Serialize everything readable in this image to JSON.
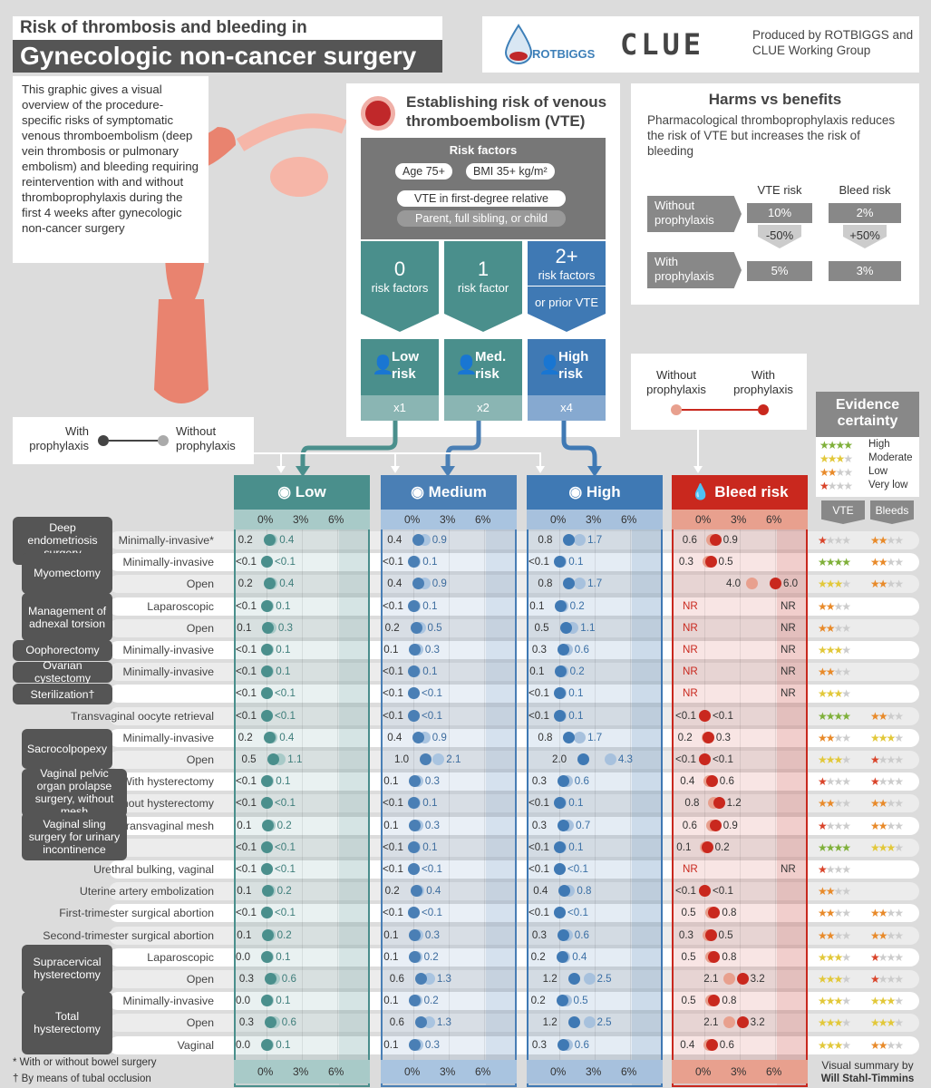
{
  "title": {
    "line1": "Risk of thrombosis and bleeding in",
    "line2": "Gynecologic non-cancer surgery"
  },
  "intro": "This graphic gives a visual overview of the procedure-specific risks of symptomatic venous thromboembolism (deep vein thrombosis or pulmonary embolism) and bleeding requiring reintervention with and without thromboprophylaxis during the first 4 weeks after gynecologic non-cancer surgery",
  "logos": {
    "rotbiggs": "ROTBIGGS",
    "clue": "CLUE",
    "produced_by": "Produced by ROTBIGGS and CLUE Working Group"
  },
  "vte": {
    "title": "Establishing risk of venous thromboembolism (VTE)",
    "risk_factors_title": "Risk factors",
    "factors": [
      "Age 75+",
      "BMI 35+ kg/m²",
      "VTE in first-degree relative",
      "Parent, full sibling, or child"
    ],
    "levels": [
      {
        "count": "0",
        "label": "risk factors",
        "risk": "Low risk",
        "mult": "x1"
      },
      {
        "count": "1",
        "label": "risk factor",
        "risk": "Med. risk",
        "mult": "x2"
      },
      {
        "count": "2+",
        "label": "risk factors",
        "extra": "or prior VTE",
        "risk": "High risk",
        "mult": "x4"
      }
    ]
  },
  "harms": {
    "title": "Harms vs benefits",
    "text": "Pharmacological thromboprophylaxis reduces the risk of VTE but increases the risk of bleeding",
    "col_vte": "VTE risk",
    "col_bleed": "Bleed risk",
    "without": "Without prophylaxis",
    "with": "With prophylaxis",
    "vte_without": "10%",
    "vte_change": "-50%",
    "vte_with": "5%",
    "bleed_without": "2%",
    "bleed_change": "+50%",
    "bleed_with": "3%"
  },
  "legend_vte": {
    "with": "With prophylaxis",
    "without": "Without prophylaxis"
  },
  "legend_bleed": {
    "without": "Without prophylaxis",
    "with": "With prophylaxis"
  },
  "evidence": {
    "title": "Evidence certainty",
    "levels": [
      "High",
      "Moderate",
      "Low",
      "Very low"
    ],
    "col_vte": "VTE",
    "col_bleeds": "Bleeds"
  },
  "columns": {
    "low": "Low",
    "medium": "Medium",
    "high": "High",
    "bleed": "Bleed risk",
    "ticks": [
      "0%",
      "3%",
      "6%"
    ]
  },
  "groups": [
    {
      "label": "Deep endometriosis surgery",
      "rows": [
        0
      ]
    },
    {
      "label": "Myomectomy",
      "rows": [
        1,
        2
      ]
    },
    {
      "label": "Management of adnexal torsion",
      "rows": [
        3,
        4
      ]
    },
    {
      "label": "Oophorectomy",
      "rows": [
        5
      ]
    },
    {
      "label": "Ovarian cystectomy",
      "rows": [
        6
      ]
    },
    {
      "label": "Sterilization†",
      "rows": [
        7
      ]
    },
    {
      "label": "Sacrocolpopexy",
      "rows": [
        9,
        10
      ]
    },
    {
      "label": "Vaginal pelvic organ prolapse surgery, without mesh",
      "rows": [
        11,
        12
      ]
    },
    {
      "label": "Vaginal sling surgery for urinary incontinence",
      "rows": [
        13,
        14
      ]
    },
    {
      "label": "Supracervical hysterectomy",
      "rows": [
        19,
        20
      ]
    },
    {
      "label": "Total hysterectomy",
      "rows": [
        21,
        22,
        23
      ]
    }
  ],
  "rows": [
    {
      "label": "Minimally-invasive*",
      "low": [
        "0.2",
        "0.4"
      ],
      "med": [
        "0.4",
        "0.9"
      ],
      "high": [
        "0.8",
        "1.7"
      ],
      "bleed": [
        "0.6",
        "0.9"
      ],
      "ev_vte": 1,
      "ev_bleed": 2
    },
    {
      "label": "Minimally-invasive",
      "low": [
        "<0.1",
        "<0.1"
      ],
      "med": [
        "<0.1",
        "0.1"
      ],
      "high": [
        "<0.1",
        "0.1"
      ],
      "bleed": [
        "0.3",
        "0.5"
      ],
      "ev_vte": 4,
      "ev_bleed": 2
    },
    {
      "label": "Open",
      "low": [
        "0.2",
        "0.4"
      ],
      "med": [
        "0.4",
        "0.9"
      ],
      "high": [
        "0.8",
        "1.7"
      ],
      "bleed": [
        "4.0",
        "6.0"
      ],
      "ev_vte": 3,
      "ev_bleed": 2
    },
    {
      "label": "Laparoscopic",
      "low": [
        "<0.1",
        "0.1"
      ],
      "med": [
        "<0.1",
        "0.1"
      ],
      "high": [
        "0.1",
        "0.2"
      ],
      "bleed": [
        "NR",
        "NR"
      ],
      "ev_vte": 2,
      "ev_bleed": 0
    },
    {
      "label": "Open",
      "low": [
        "0.1",
        "0.3"
      ],
      "med": [
        "0.2",
        "0.5"
      ],
      "high": [
        "0.5",
        "1.1"
      ],
      "bleed": [
        "NR",
        "NR"
      ],
      "ev_vte": 2,
      "ev_bleed": 0
    },
    {
      "label": "Minimally-invasive",
      "low": [
        "<0.1",
        "0.1"
      ],
      "med": [
        "0.1",
        "0.3"
      ],
      "high": [
        "0.3",
        "0.6"
      ],
      "bleed": [
        "NR",
        "NR"
      ],
      "ev_vte": 3,
      "ev_bleed": 0
    },
    {
      "label": "Minimally-invasive",
      "low": [
        "<0.1",
        "0.1"
      ],
      "med": [
        "<0.1",
        "0.1"
      ],
      "high": [
        "0.1",
        "0.2"
      ],
      "bleed": [
        "NR",
        "NR"
      ],
      "ev_vte": 2,
      "ev_bleed": 0
    },
    {
      "label": "",
      "low": [
        "<0.1",
        "<0.1"
      ],
      "med": [
        "<0.1",
        "<0.1"
      ],
      "high": [
        "<0.1",
        "0.1"
      ],
      "bleed": [
        "NR",
        "NR"
      ],
      "ev_vte": 3,
      "ev_bleed": 0
    },
    {
      "label": "Transvaginal oocyte retrieval",
      "low": [
        "<0.1",
        "<0.1"
      ],
      "med": [
        "<0.1",
        "<0.1"
      ],
      "high": [
        "<0.1",
        "0.1"
      ],
      "bleed": [
        "<0.1",
        "<0.1"
      ],
      "ev_vte": 4,
      "ev_bleed": 2
    },
    {
      "label": "Minimally-invasive",
      "low": [
        "0.2",
        "0.4"
      ],
      "med": [
        "0.4",
        "0.9"
      ],
      "high": [
        "0.8",
        "1.7"
      ],
      "bleed": [
        "0.2",
        "0.3"
      ],
      "ev_vte": 2,
      "ev_bleed": 3
    },
    {
      "label": "Open",
      "low": [
        "0.5",
        "1.1"
      ],
      "med": [
        "1.0",
        "2.1"
      ],
      "high": [
        "2.0",
        "4.3"
      ],
      "bleed": [
        "<0.1",
        "<0.1"
      ],
      "ev_vte": 3,
      "ev_bleed": 1
    },
    {
      "label": "With hysterectomy",
      "low": [
        "<0.1",
        "0.1"
      ],
      "med": [
        "0.1",
        "0.3"
      ],
      "high": [
        "0.3",
        "0.6"
      ],
      "bleed": [
        "0.4",
        "0.6"
      ],
      "ev_vte": 1,
      "ev_bleed": 1
    },
    {
      "label": "Without hysterectomy",
      "low": [
        "<0.1",
        "<0.1"
      ],
      "med": [
        "<0.1",
        "0.1"
      ],
      "high": [
        "<0.1",
        "0.1"
      ],
      "bleed": [
        "0.8",
        "1.2"
      ],
      "ev_vte": 2,
      "ev_bleed": 2
    },
    {
      "label": "Transvaginal mesh",
      "low": [
        "0.1",
        "0.2"
      ],
      "med": [
        "0.1",
        "0.3"
      ],
      "high": [
        "0.3",
        "0.7"
      ],
      "bleed": [
        "0.6",
        "0.9"
      ],
      "ev_vte": 1,
      "ev_bleed": 2
    },
    {
      "label": "",
      "low": [
        "<0.1",
        "<0.1"
      ],
      "med": [
        "<0.1",
        "0.1"
      ],
      "high": [
        "<0.1",
        "0.1"
      ],
      "bleed": [
        "0.1",
        "0.2"
      ],
      "ev_vte": 4,
      "ev_bleed": 3
    },
    {
      "label": "Urethral bulking, vaginal",
      "low": [
        "<0.1",
        "<0.1"
      ],
      "med": [
        "<0.1",
        "<0.1"
      ],
      "high": [
        "<0.1",
        "<0.1"
      ],
      "bleed": [
        "NR",
        "NR"
      ],
      "ev_vte": 1,
      "ev_bleed": 0
    },
    {
      "label": "Uterine artery embolization",
      "low": [
        "0.1",
        "0.2"
      ],
      "med": [
        "0.2",
        "0.4"
      ],
      "high": [
        "0.4",
        "0.8"
      ],
      "bleed": [
        "<0.1",
        "<0.1"
      ],
      "ev_vte": 2,
      "ev_bleed": 0
    },
    {
      "label": "First-trimester surgical abortion",
      "low": [
        "<0.1",
        "<0.1"
      ],
      "med": [
        "<0.1",
        "<0.1"
      ],
      "high": [
        "<0.1",
        "<0.1"
      ],
      "bleed": [
        "0.5",
        "0.8"
      ],
      "ev_vte": 2,
      "ev_bleed": 2
    },
    {
      "label": "Second-trimester surgical abortion",
      "low": [
        "0.1",
        "0.2"
      ],
      "med": [
        "0.1",
        "0.3"
      ],
      "high": [
        "0.3",
        "0.6"
      ],
      "bleed": [
        "0.3",
        "0.5"
      ],
      "ev_vte": 2,
      "ev_bleed": 2
    },
    {
      "label": "Laparoscopic",
      "low": [
        "0.0",
        "0.1"
      ],
      "med": [
        "0.1",
        "0.2"
      ],
      "high": [
        "0.2",
        "0.4"
      ],
      "bleed": [
        "0.5",
        "0.8"
      ],
      "ev_vte": 3,
      "ev_bleed": 1
    },
    {
      "label": "Open",
      "low": [
        "0.3",
        "0.6"
      ],
      "med": [
        "0.6",
        "1.3"
      ],
      "high": [
        "1.2",
        "2.5"
      ],
      "bleed": [
        "2.1",
        "3.2"
      ],
      "ev_vte": 3,
      "ev_bleed": 1
    },
    {
      "label": "Minimally-invasive",
      "low": [
        "0.0",
        "0.1"
      ],
      "med": [
        "0.1",
        "0.2"
      ],
      "high": [
        "0.2",
        "0.5"
      ],
      "bleed": [
        "0.5",
        "0.8"
      ],
      "ev_vte": 3,
      "ev_bleed": 3
    },
    {
      "label": "Open",
      "low": [
        "0.3",
        "0.6"
      ],
      "med": [
        "0.6",
        "1.3"
      ],
      "high": [
        "1.2",
        "2.5"
      ],
      "bleed": [
        "2.1",
        "3.2"
      ],
      "ev_vte": 3,
      "ev_bleed": 3
    },
    {
      "label": "Vaginal",
      "low": [
        "0.0",
        "0.1"
      ],
      "med": [
        "0.1",
        "0.3"
      ],
      "high": [
        "0.3",
        "0.6"
      ],
      "bleed": [
        "0.4",
        "0.6"
      ],
      "ev_vte": 3,
      "ev_bleed": 2
    }
  ],
  "footnotes": [
    "* With or without bowel surgery",
    "† By means of tubal occlusion"
  ],
  "credit": {
    "line1": "Visual summary by",
    "line2": "Will Stahl-Timmins"
  },
  "colors": {
    "low": "#4a8f8c",
    "medium": "#4a7fb5",
    "high": "#3f79b4",
    "bleed": "#c9281e",
    "grey": "#555555"
  }
}
